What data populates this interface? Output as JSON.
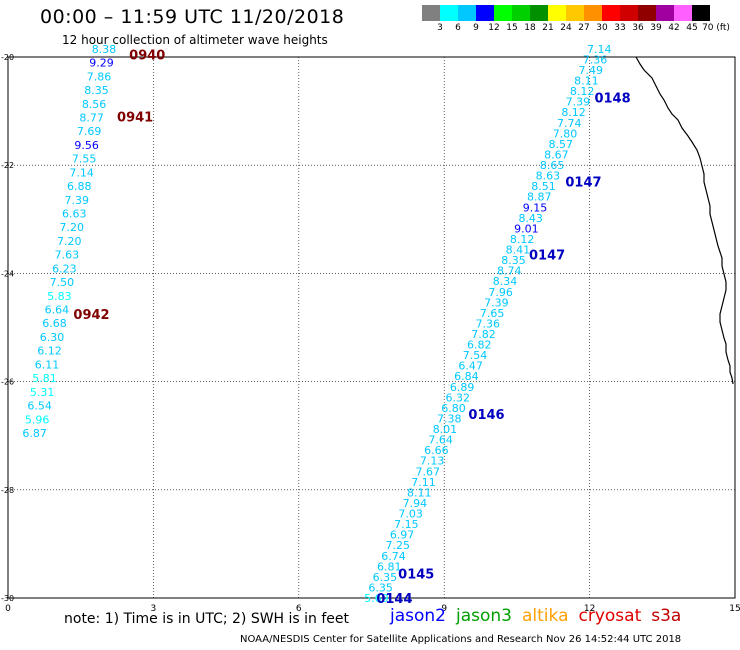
{
  "title": "00:00 – 11:59 UTC 11/20/2018",
  "subtitle": "12 hour collection of altimeter wave heights",
  "legend": {
    "labels": [
      "3",
      "6",
      "9",
      "12",
      "15",
      "18",
      "21",
      "24",
      "27",
      "30",
      "33",
      "36",
      "39",
      "42",
      "45",
      "70 (ft)"
    ],
    "colors": [
      "#808080",
      "#00ffff",
      "#00c8ff",
      "#0000ff",
      "#00ff00",
      "#00d000",
      "#009000",
      "#ffff00",
      "#ffc800",
      "#ff9000",
      "#ff0000",
      "#d00000",
      "#900000",
      "#a000a0",
      "#ff60ff",
      "#000000"
    ]
  },
  "axes": {
    "x_ticks": [
      "0",
      "3",
      "6",
      "9",
      "12",
      "15"
    ],
    "y_ticks": [
      "-20",
      "-22",
      "-24",
      "-26",
      "-28",
      "-30"
    ],
    "x_range": [
      0,
      15
    ],
    "y_range": [
      -30,
      -20
    ]
  },
  "tracks": {
    "west": {
      "values": [
        "8.38",
        "9.29",
        "7.86",
        "8.35",
        "8.56",
        "8.77",
        "7.69",
        "9.56",
        "7.55",
        "7.14",
        "6.88",
        "7.39",
        "6.63",
        "7.20",
        "7.20",
        "7.63",
        "6.23",
        "7.50",
        "5.83",
        "6.64",
        "6.68",
        "6.30",
        "6.12",
        "6.11",
        "5.81",
        "5.31",
        "6.54",
        "5.96",
        "6.87"
      ],
      "start": [
        -19.85,
        1.98
      ],
      "end": [
        -26.95,
        0.55
      ]
    },
    "east": {
      "values": [
        "7.14",
        "7.36",
        "7.49",
        "8.11",
        "8.12",
        "7.39",
        "8.12",
        "7.74",
        "7.80",
        "8.57",
        "8.67",
        "8.65",
        "8.63",
        "8.51",
        "8.87",
        "9.15",
        "8.43",
        "9.01",
        "8.12",
        "8.41",
        "8.35",
        "8.74",
        "8.34",
        "7.96",
        "7.39",
        "7.65",
        "7.36",
        "7.82",
        "6.82",
        "7.54",
        "6.47",
        "6.84",
        "6.89",
        "6.32",
        "6.80",
        "7.38",
        "8.01",
        "7.64",
        "6.66",
        "7.13",
        "7.67",
        "7.11",
        "8.11",
        "7.94",
        "7.03",
        "7.15",
        "6.97",
        "7.25",
        "6.74",
        "6.81",
        "6.35",
        "6.35",
        "5.69"
      ],
      "start": [
        -19.85,
        12.2
      ],
      "end": [
        -30.0,
        7.6
      ]
    }
  },
  "pass_labels": [
    {
      "text": "0940",
      "lat": -19.95,
      "lon": 2.5,
      "color": "#800000"
    },
    {
      "text": "0941",
      "lat": -21.1,
      "lon": 2.25,
      "color": "#800000"
    },
    {
      "text": "0942",
      "lat": -24.75,
      "lon": 1.35,
      "color": "#800000"
    },
    {
      "text": "0148",
      "lat": -20.75,
      "lon": 12.1,
      "color": "#0000c0"
    },
    {
      "text": "0147",
      "lat": -22.3,
      "lon": 11.5,
      "color": "#0000c0"
    },
    {
      "text": "0147",
      "lat": -23.65,
      "lon": 10.75,
      "color": "#0000c0"
    },
    {
      "text": "0146",
      "lat": -26.6,
      "lon": 9.5,
      "color": "#0000c0"
    },
    {
      "text": "0145",
      "lat": -29.55,
      "lon": 8.05,
      "color": "#0000c0"
    },
    {
      "text": "0144",
      "lat": -30.0,
      "lon": 7.6,
      "color": "#0000c0"
    }
  ],
  "note": "note: 1) Time is in UTC; 2) SWH is in feet",
  "satellites": [
    {
      "name": "jason2",
      "color": "#0000ff"
    },
    {
      "name": "jason3",
      "color": "#00a000"
    },
    {
      "name": "altika",
      "color": "#ffa000"
    },
    {
      "name": "cryosat",
      "color": "#e00000"
    },
    {
      "name": "s3a",
      "color": "#c00000"
    }
  ],
  "credit": "NOAA/NESDIS Center for Satellite Applications and Research   Nov 26 14:52:44 UTC 2018"
}
